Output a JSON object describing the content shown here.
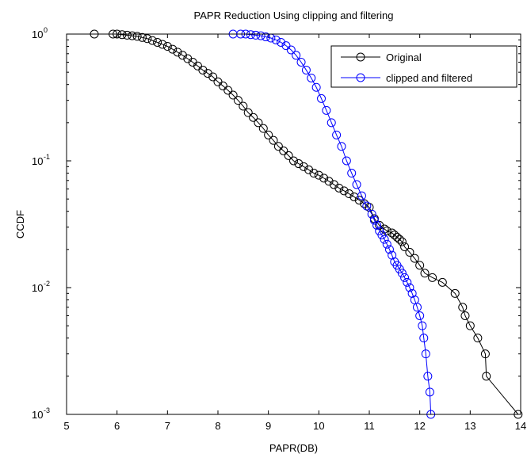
{
  "chart_data": {
    "type": "line",
    "title": "PAPR Reduction Using clipping and filtering",
    "xlabel": "PAPR(DB)",
    "ylabel": "CCDF",
    "xlim": [
      5,
      14
    ],
    "ylim": [
      0.001,
      1
    ],
    "yscale": "log",
    "grid": false,
    "legend_position": "top-right",
    "xticks": [
      5,
      6,
      7,
      8,
      9,
      10,
      11,
      12,
      13,
      14
    ],
    "xtick_labels": [
      "5",
      "6",
      "7",
      "8",
      "9",
      "10",
      "11",
      "12",
      "13",
      "14"
    ],
    "yticks": [
      {
        "value": 1,
        "base": "10",
        "exp": "0"
      },
      {
        "value": 0.1,
        "base": "10",
        "exp": "-1"
      },
      {
        "value": 0.01,
        "base": "10",
        "exp": "-2"
      },
      {
        "value": 0.001,
        "base": "10",
        "exp": "-3"
      }
    ],
    "series": [
      {
        "name": "Original",
        "color": "#000000",
        "marker": "circle",
        "x": [
          5.55,
          5.92,
          6.0,
          6.1,
          6.2,
          6.3,
          6.4,
          6.5,
          6.6,
          6.7,
          6.8,
          6.9,
          7.0,
          7.1,
          7.2,
          7.3,
          7.4,
          7.5,
          7.6,
          7.7,
          7.8,
          7.9,
          8.0,
          8.1,
          8.2,
          8.3,
          8.4,
          8.5,
          8.6,
          8.7,
          8.8,
          8.9,
          9.0,
          9.1,
          9.2,
          9.3,
          9.4,
          9.5,
          9.6,
          9.7,
          9.8,
          9.9,
          10.0,
          10.1,
          10.2,
          10.3,
          10.4,
          10.5,
          10.6,
          10.7,
          10.8,
          10.9,
          11.0,
          11.1,
          11.2,
          11.3,
          11.35,
          11.45,
          11.5,
          11.55,
          11.6,
          11.65,
          11.7,
          11.8,
          11.9,
          12.0,
          12.1,
          12.25,
          12.45,
          12.7,
          12.85,
          12.9,
          13.0,
          13.15,
          13.3,
          13.32,
          13.95
        ],
        "y": [
          1.0,
          1.0,
          1.0,
          0.99,
          0.98,
          0.97,
          0.96,
          0.94,
          0.92,
          0.89,
          0.86,
          0.83,
          0.8,
          0.76,
          0.72,
          0.68,
          0.64,
          0.6,
          0.56,
          0.52,
          0.49,
          0.46,
          0.42,
          0.39,
          0.36,
          0.33,
          0.3,
          0.27,
          0.24,
          0.22,
          0.2,
          0.18,
          0.16,
          0.145,
          0.13,
          0.12,
          0.11,
          0.1,
          0.095,
          0.09,
          0.085,
          0.08,
          0.077,
          0.073,
          0.069,
          0.065,
          0.061,
          0.058,
          0.055,
          0.052,
          0.049,
          0.046,
          0.043,
          0.035,
          0.031,
          0.029,
          0.028,
          0.027,
          0.026,
          0.025,
          0.024,
          0.023,
          0.021,
          0.019,
          0.017,
          0.015,
          0.013,
          0.012,
          0.011,
          0.009,
          0.007,
          0.006,
          0.005,
          0.004,
          0.003,
          0.002,
          0.001
        ]
      },
      {
        "name": "clipped and filtered",
        "color": "#0000ff",
        "marker": "circle",
        "x": [
          8.3,
          8.45,
          8.55,
          8.65,
          8.75,
          8.85,
          8.95,
          9.05,
          9.15,
          9.25,
          9.35,
          9.45,
          9.55,
          9.65,
          9.75,
          9.85,
          9.95,
          10.05,
          10.15,
          10.25,
          10.35,
          10.45,
          10.55,
          10.65,
          10.75,
          10.85,
          10.95,
          11.05,
          11.1,
          11.15,
          11.2,
          11.25,
          11.3,
          11.35,
          11.4,
          11.45,
          11.5,
          11.55,
          11.6,
          11.65,
          11.7,
          11.75,
          11.8,
          11.85,
          11.9,
          11.95,
          12.0,
          12.05,
          12.08,
          12.12,
          12.16,
          12.2,
          12.22
        ],
        "y": [
          1.0,
          1.0,
          1.0,
          0.99,
          0.98,
          0.97,
          0.95,
          0.93,
          0.9,
          0.86,
          0.81,
          0.75,
          0.68,
          0.6,
          0.52,
          0.45,
          0.38,
          0.31,
          0.25,
          0.2,
          0.16,
          0.13,
          0.1,
          0.08,
          0.065,
          0.053,
          0.044,
          0.038,
          0.034,
          0.031,
          0.028,
          0.026,
          0.024,
          0.022,
          0.02,
          0.018,
          0.016,
          0.015,
          0.014,
          0.013,
          0.012,
          0.011,
          0.01,
          0.009,
          0.008,
          0.007,
          0.006,
          0.005,
          0.004,
          0.003,
          0.002,
          0.0015,
          0.001
        ]
      }
    ]
  }
}
